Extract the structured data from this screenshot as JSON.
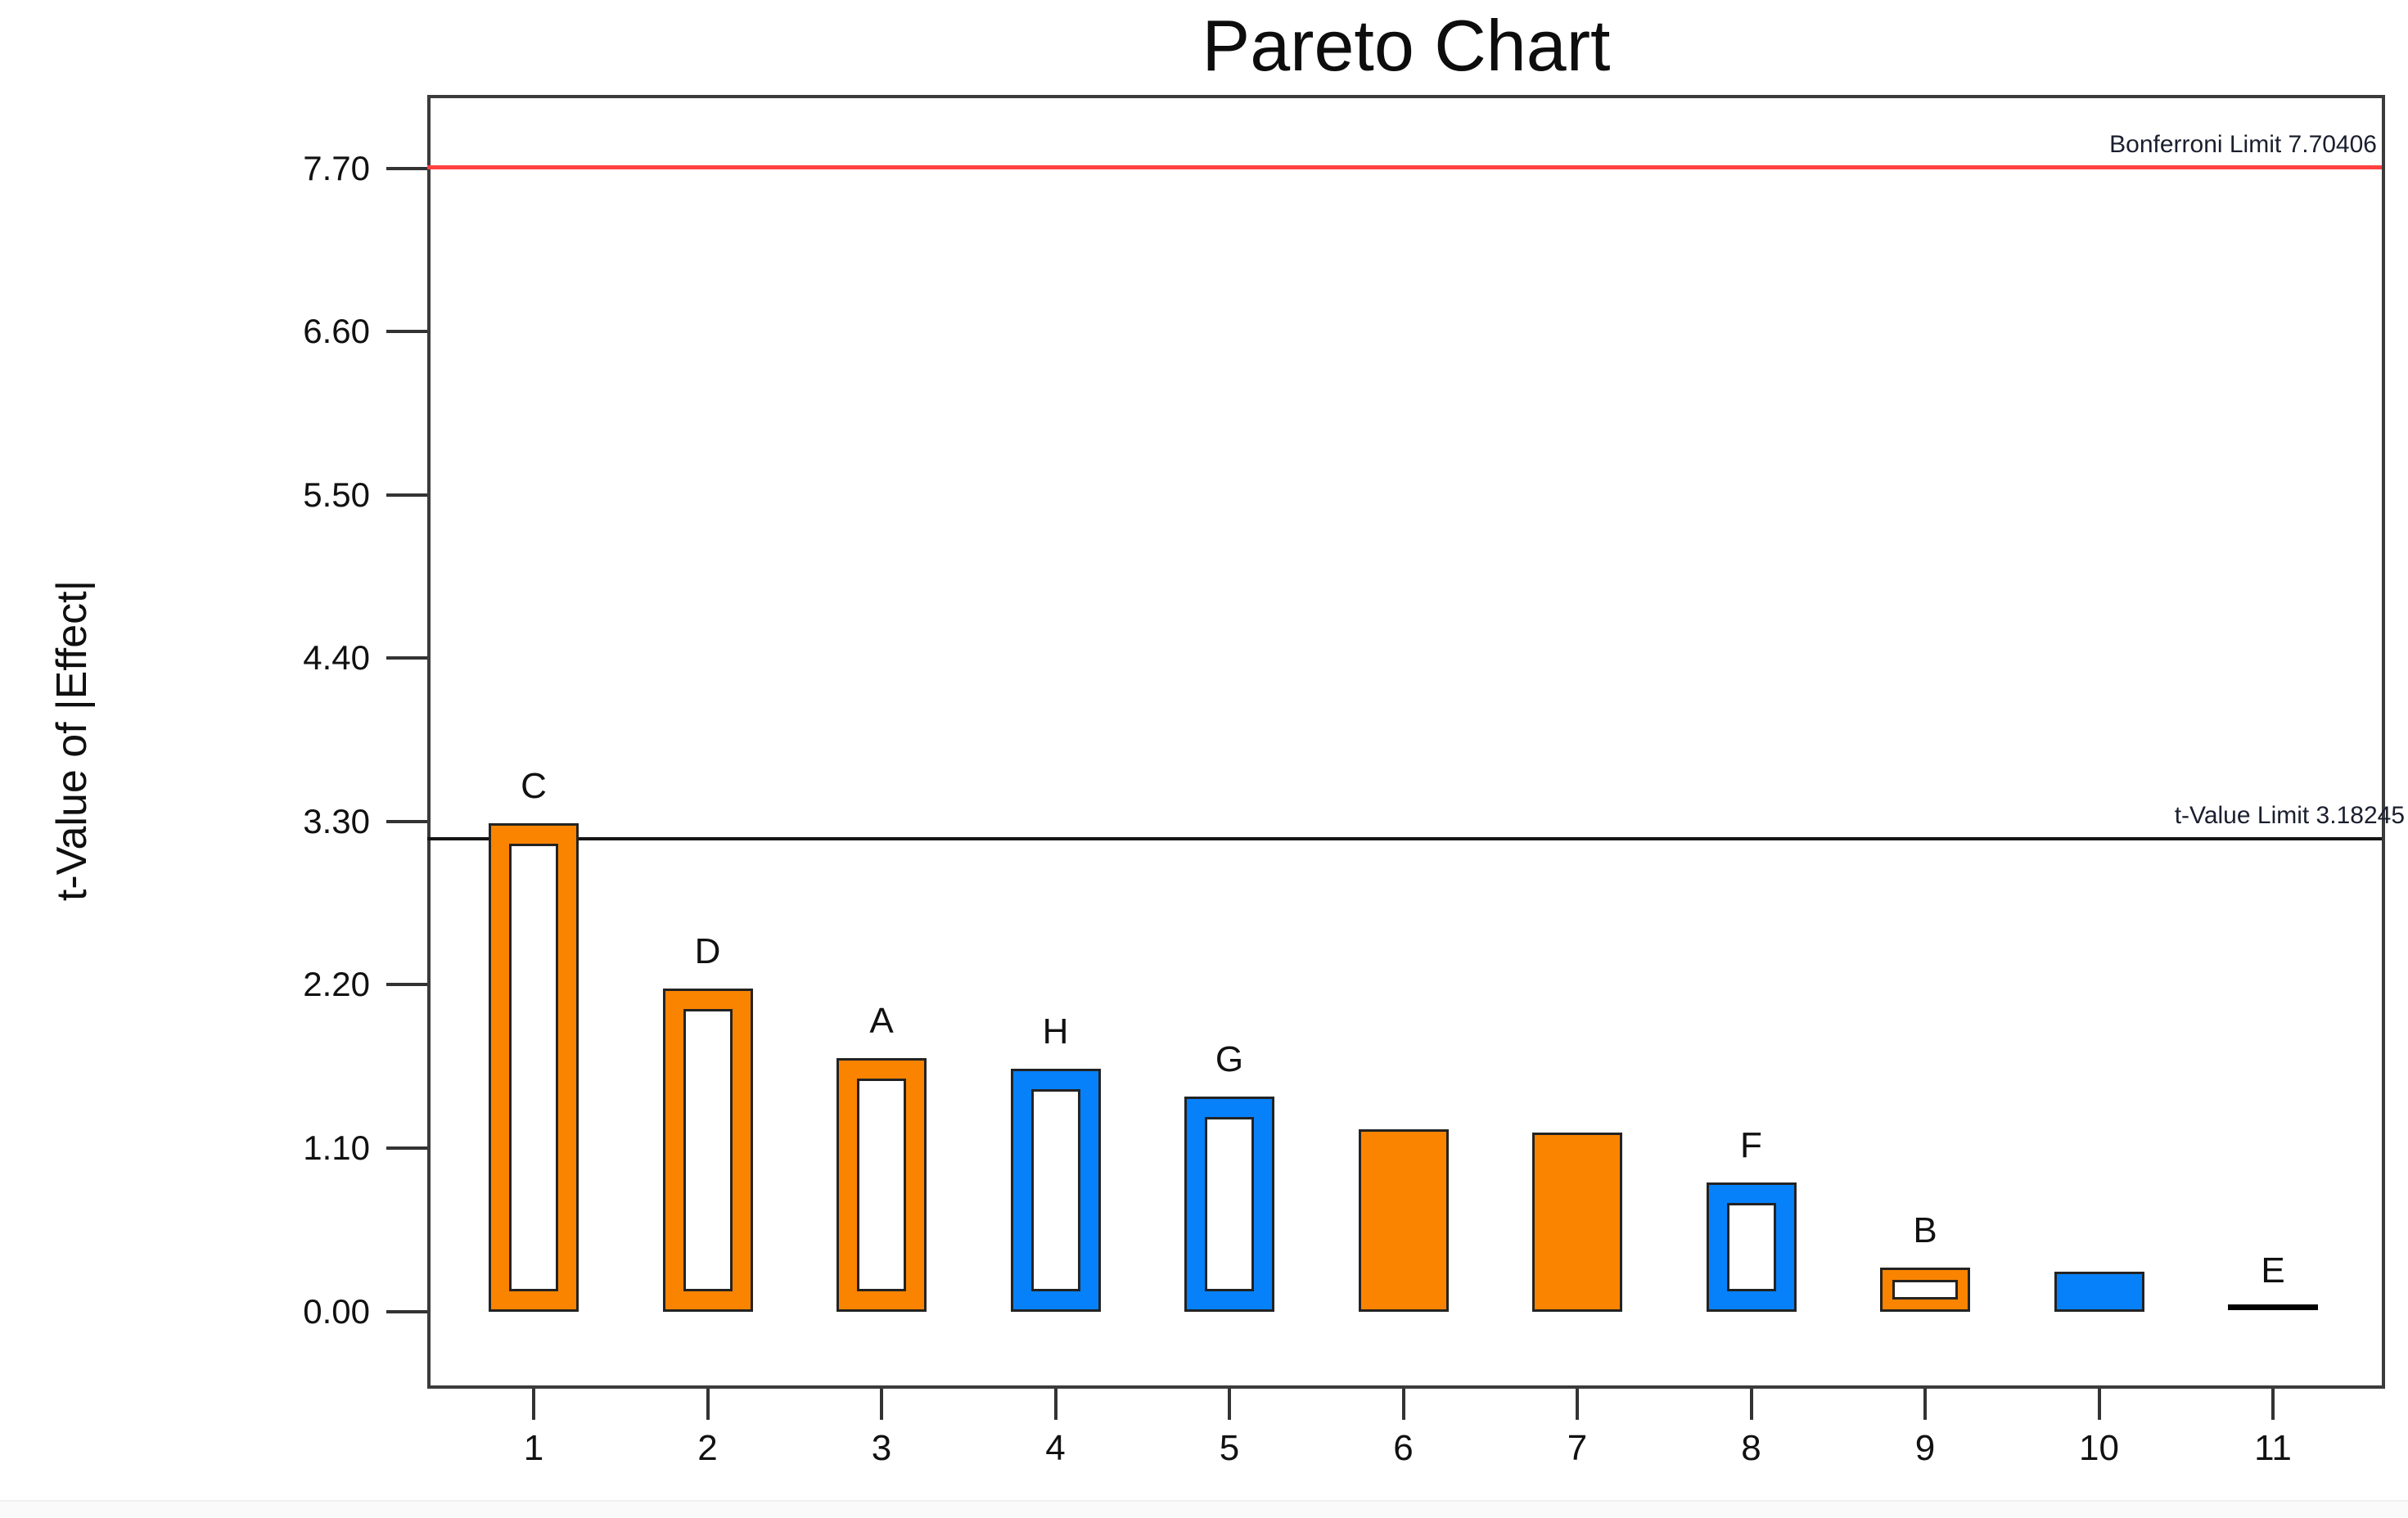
{
  "title": "Pareto Chart",
  "y_axis": {
    "label": "t-Value of |Effect|",
    "tick_labels": [
      "7.70",
      "6.60",
      "5.50",
      "4.40",
      "3.30",
      "2.20",
      "1.10",
      "0.00"
    ]
  },
  "x_axis": {
    "tick_labels": [
      "1",
      "2",
      "3",
      "4",
      "5",
      "6",
      "7",
      "8",
      "9",
      "10",
      "11"
    ]
  },
  "colors": {
    "orange": "#FA8400",
    "blue": "#0681F9",
    "bar_outline": "#232323",
    "bar_inner_fill": "#FFFFFF",
    "axis_frame": "#3B3B3B",
    "tick": "#333333",
    "bonferroni_line": "#FF4141",
    "t_limit_line": "#141414",
    "black_bar_line": "#000000",
    "text": "#111111",
    "bottom_strip": "#FAFAFA"
  },
  "chart_data": {
    "type": "bar",
    "title": "Pareto Chart",
    "xlabel": "",
    "ylabel": "t-Value of |Effect|",
    "categories": [
      "1",
      "2",
      "3",
      "4",
      "5",
      "6",
      "7",
      "8",
      "9",
      "10",
      "11"
    ],
    "yticks": [
      0.0,
      1.1,
      2.2,
      3.3,
      4.4,
      5.5,
      6.6,
      7.7
    ],
    "ylim": [
      -0.5,
      8.19
    ],
    "grid": false,
    "legend": false,
    "bars": [
      {
        "x": 1,
        "label": "C",
        "value": 3.29,
        "style": "orange-hollow"
      },
      {
        "x": 2,
        "label": "D",
        "value": 2.18,
        "style": "orange-hollow"
      },
      {
        "x": 3,
        "label": "A",
        "value": 1.71,
        "style": "orange-hollow"
      },
      {
        "x": 4,
        "label": "H",
        "value": 1.64,
        "style": "blue-hollow"
      },
      {
        "x": 5,
        "label": "G",
        "value": 1.45,
        "style": "blue-hollow"
      },
      {
        "x": 6,
        "label": "",
        "value": 1.23,
        "style": "orange-solid"
      },
      {
        "x": 7,
        "label": "",
        "value": 1.21,
        "style": "orange-solid"
      },
      {
        "x": 8,
        "label": "F",
        "value": 0.87,
        "style": "blue-hollow"
      },
      {
        "x": 9,
        "label": "B",
        "value": 0.3,
        "style": "orange-hollow"
      },
      {
        "x": 10,
        "label": "",
        "value": 0.27,
        "style": "blue-solid"
      },
      {
        "x": 11,
        "label": "E",
        "value": 0.03,
        "style": "black-line"
      }
    ],
    "reference_lines": [
      {
        "id": "bonferroni",
        "label": "Bonferroni Limit 7.70406",
        "value": 7.70406
      },
      {
        "id": "t_value",
        "label": "t-Value Limit 3.18245",
        "value": 3.18245
      }
    ]
  }
}
